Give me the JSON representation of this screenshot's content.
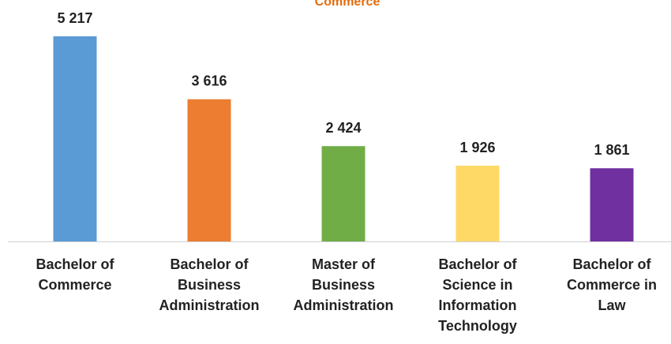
{
  "chart_data": {
    "type": "bar",
    "title": "Commerce",
    "categories": [
      "Bachelor of Commerce",
      "Bachelor of Business Administration",
      "Master of Business Administration",
      "Bachelor of Science in Information Technology",
      "Bachelor of Commerce in Law"
    ],
    "values": [
      5217,
      3616,
      2424,
      1926,
      1861
    ],
    "value_labels": [
      "5 217",
      "3 616",
      "2 424",
      "1 926",
      "1 861"
    ],
    "colors": [
      "#5b9bd5",
      "#ed7d31",
      "#70ad47",
      "#ffd966",
      "#7030a0"
    ],
    "ylim": [
      0,
      6000
    ]
  }
}
